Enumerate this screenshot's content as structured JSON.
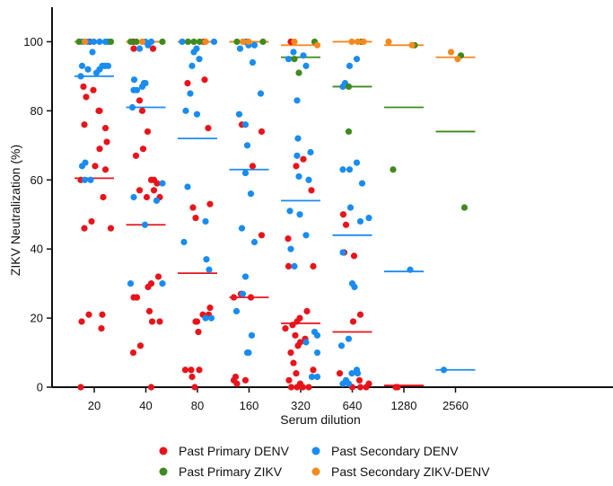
{
  "chart_data": {
    "type": "scatter",
    "xlabel": "Serum dilution",
    "ylabel": "ZIKV Neutralization (%)",
    "ylim": [
      0,
      110
    ],
    "yticks": [
      0,
      20,
      40,
      60,
      80,
      100
    ],
    "categories": [
      "20",
      "40",
      "80",
      "160",
      "320",
      "640",
      "1280",
      "2560"
    ],
    "grid": false,
    "legend_position": "bottom",
    "series": [
      {
        "name": "Past Primary DENV",
        "color": "#e8141b",
        "points": [
          [
            0,
            100
          ],
          [
            0,
            87
          ],
          [
            0,
            86
          ],
          [
            0,
            84
          ],
          [
            0,
            80
          ],
          [
            0,
            80
          ],
          [
            0,
            76
          ],
          [
            0,
            75
          ],
          [
            0,
            71
          ],
          [
            0,
            69
          ],
          [
            0,
            64
          ],
          [
            0,
            63
          ],
          [
            0,
            60
          ],
          [
            0,
            55
          ],
          [
            0,
            48
          ],
          [
            0,
            46
          ],
          [
            0,
            46
          ],
          [
            0,
            21
          ],
          [
            0,
            21
          ],
          [
            0,
            19
          ],
          [
            0,
            17
          ],
          [
            0,
            0
          ],
          [
            1,
            100
          ],
          [
            1,
            98
          ],
          [
            1,
            98
          ],
          [
            1,
            83
          ],
          [
            1,
            80
          ],
          [
            1,
            74
          ],
          [
            1,
            69
          ],
          [
            1,
            67
          ],
          [
            1,
            60
          ],
          [
            1,
            60
          ],
          [
            1,
            59
          ],
          [
            1,
            57
          ],
          [
            1,
            57
          ],
          [
            1,
            55
          ],
          [
            1,
            55
          ],
          [
            1,
            32
          ],
          [
            1,
            30
          ],
          [
            1,
            29
          ],
          [
            1,
            26
          ],
          [
            1,
            26
          ],
          [
            1,
            22
          ],
          [
            1,
            19
          ],
          [
            1,
            19
          ],
          [
            1,
            12
          ],
          [
            1,
            10
          ],
          [
            1,
            0
          ],
          [
            2,
            100
          ],
          [
            2,
            89
          ],
          [
            2,
            88
          ],
          [
            2,
            75
          ],
          [
            2,
            53
          ],
          [
            2,
            52
          ],
          [
            2,
            49
          ],
          [
            2,
            23
          ],
          [
            2,
            21
          ],
          [
            2,
            21
          ],
          [
            2,
            19
          ],
          [
            2,
            19
          ],
          [
            2,
            16
          ],
          [
            2,
            5
          ],
          [
            2,
            5
          ],
          [
            2,
            5
          ],
          [
            2,
            3
          ],
          [
            2,
            0
          ],
          [
            3,
            100
          ],
          [
            3,
            76
          ],
          [
            3,
            74
          ],
          [
            3,
            64
          ],
          [
            3,
            44
          ],
          [
            3,
            27
          ],
          [
            3,
            26
          ],
          [
            3,
            26
          ],
          [
            3,
            3
          ],
          [
            3,
            2
          ],
          [
            3,
            2
          ],
          [
            3,
            1
          ],
          [
            4,
            100
          ],
          [
            4,
            66
          ],
          [
            4,
            64
          ],
          [
            4,
            57
          ],
          [
            4,
            43
          ],
          [
            4,
            35
          ],
          [
            4,
            35
          ],
          [
            4,
            22
          ],
          [
            4,
            20
          ],
          [
            4,
            19
          ],
          [
            4,
            18
          ],
          [
            4,
            17
          ],
          [
            4,
            15
          ],
          [
            4,
            14
          ],
          [
            4,
            13
          ],
          [
            4,
            12
          ],
          [
            4,
            10
          ],
          [
            4,
            7
          ],
          [
            4,
            5
          ],
          [
            4,
            4
          ],
          [
            4,
            2
          ],
          [
            4,
            1
          ],
          [
            4,
            0
          ],
          [
            4,
            0
          ],
          [
            4,
            0
          ],
          [
            4,
            0
          ],
          [
            5,
            50
          ],
          [
            5,
            47
          ],
          [
            5,
            39
          ],
          [
            5,
            38
          ],
          [
            5,
            21
          ],
          [
            5,
            19
          ],
          [
            5,
            4
          ],
          [
            5,
            2
          ],
          [
            5,
            1
          ],
          [
            5,
            0
          ],
          [
            5,
            0
          ],
          [
            5,
            0
          ],
          [
            6,
            0
          ],
          [
            6,
            0
          ]
        ]
      },
      {
        "name": "Past Secondary DENV",
        "color": "#1a8cf0",
        "points": [
          [
            0,
            100
          ],
          [
            0,
            100
          ],
          [
            0,
            100
          ],
          [
            0,
            100
          ],
          [
            0,
            100
          ],
          [
            0,
            100
          ],
          [
            0,
            97
          ],
          [
            0,
            93
          ],
          [
            0,
            93
          ],
          [
            0,
            93
          ],
          [
            0,
            93
          ],
          [
            0,
            92
          ],
          [
            0,
            92
          ],
          [
            0,
            91
          ],
          [
            0,
            90
          ],
          [
            0,
            65
          ],
          [
            0,
            64
          ],
          [
            0,
            60
          ],
          [
            0,
            60
          ],
          [
            1,
            100
          ],
          [
            1,
            100
          ],
          [
            1,
            99
          ],
          [
            1,
            98
          ],
          [
            1,
            89
          ],
          [
            1,
            88
          ],
          [
            1,
            88
          ],
          [
            1,
            87
          ],
          [
            1,
            86
          ],
          [
            1,
            86
          ],
          [
            1,
            81
          ],
          [
            1,
            59
          ],
          [
            1,
            55
          ],
          [
            1,
            54
          ],
          [
            1,
            47
          ],
          [
            1,
            30
          ],
          [
            1,
            30
          ],
          [
            2,
            100
          ],
          [
            2,
            100
          ],
          [
            2,
            98
          ],
          [
            2,
            97
          ],
          [
            2,
            95
          ],
          [
            2,
            93
          ],
          [
            2,
            85
          ],
          [
            2,
            80
          ],
          [
            2,
            79
          ],
          [
            2,
            58
          ],
          [
            2,
            48
          ],
          [
            2,
            42
          ],
          [
            2,
            37
          ],
          [
            2,
            34
          ],
          [
            2,
            20
          ],
          [
            2,
            20
          ],
          [
            3,
            100
          ],
          [
            3,
            99
          ],
          [
            3,
            99
          ],
          [
            3,
            98
          ],
          [
            3,
            94
          ],
          [
            3,
            85
          ],
          [
            3,
            79
          ],
          [
            3,
            76
          ],
          [
            3,
            70
          ],
          [
            3,
            62
          ],
          [
            3,
            56
          ],
          [
            3,
            46
          ],
          [
            3,
            42
          ],
          [
            3,
            32
          ],
          [
            3,
            27
          ],
          [
            3,
            22
          ],
          [
            3,
            15
          ],
          [
            3,
            10
          ],
          [
            3,
            10
          ],
          [
            4,
            97
          ],
          [
            4,
            96
          ],
          [
            4,
            95
          ],
          [
            4,
            93
          ],
          [
            4,
            83
          ],
          [
            4,
            72
          ],
          [
            4,
            68
          ],
          [
            4,
            67
          ],
          [
            4,
            61
          ],
          [
            4,
            60
          ],
          [
            4,
            51
          ],
          [
            4,
            50
          ],
          [
            4,
            44
          ],
          [
            4,
            40
          ],
          [
            4,
            35
          ],
          [
            4,
            16
          ],
          [
            4,
            15
          ],
          [
            4,
            13
          ],
          [
            4,
            10
          ],
          [
            4,
            3
          ],
          [
            4,
            3
          ],
          [
            5,
            95
          ],
          [
            5,
            93
          ],
          [
            5,
            88
          ],
          [
            5,
            87
          ],
          [
            5,
            65
          ],
          [
            5,
            63
          ],
          [
            5,
            63
          ],
          [
            5,
            59
          ],
          [
            5,
            52
          ],
          [
            5,
            49
          ],
          [
            5,
            48
          ],
          [
            5,
            39
          ],
          [
            5,
            30
          ],
          [
            5,
            29
          ],
          [
            5,
            14
          ],
          [
            5,
            12
          ],
          [
            5,
            5
          ],
          [
            5,
            4
          ],
          [
            5,
            4
          ],
          [
            5,
            2
          ],
          [
            5,
            1
          ],
          [
            5,
            1
          ],
          [
            6,
            34
          ],
          [
            7,
            5
          ]
        ]
      },
      {
        "name": "Past Primary ZIKV",
        "color": "#3e8a1e",
        "points": [
          [
            0,
            100
          ],
          [
            0,
            100
          ],
          [
            1,
            100
          ],
          [
            1,
            100
          ],
          [
            1,
            100
          ],
          [
            2,
            100
          ],
          [
            2,
            100
          ],
          [
            2,
            100
          ],
          [
            3,
            100
          ],
          [
            3,
            100
          ],
          [
            4,
            100
          ],
          [
            4,
            91
          ],
          [
            4,
            95
          ],
          [
            5,
            100
          ],
          [
            5,
            87
          ],
          [
            5,
            74
          ],
          [
            6,
            99
          ],
          [
            6,
            63
          ],
          [
            7,
            96
          ],
          [
            7,
            52
          ]
        ]
      },
      {
        "name": "Past Secondary ZIKV-DENV",
        "color": "#f4891f",
        "points": [
          [
            0,
            100
          ],
          [
            1,
            100
          ],
          [
            2,
            100
          ],
          [
            3,
            100
          ],
          [
            3,
            100
          ],
          [
            4,
            99
          ],
          [
            4,
            100
          ],
          [
            5,
            100
          ],
          [
            5,
            100
          ],
          [
            5,
            100
          ],
          [
            6,
            99
          ],
          [
            6,
            100
          ],
          [
            7,
            97
          ],
          [
            7,
            95
          ]
        ]
      }
    ],
    "medians": [
      {
        "series": "Past Primary DENV",
        "values": [
          60.5,
          47,
          33,
          26,
          18.5,
          16,
          0.5,
          null
        ]
      },
      {
        "series": "Past Secondary DENV",
        "values": [
          90,
          81,
          72,
          63,
          54,
          44,
          33.5,
          5
        ]
      },
      {
        "series": "Past Primary ZIKV",
        "values": [
          100,
          100,
          100,
          100,
          95.5,
          87,
          81,
          74
        ]
      },
      {
        "series": "Past Secondary ZIKV-DENV",
        "values": [
          100,
          100,
          100,
          100,
          99,
          100,
          99,
          95.5
        ]
      }
    ]
  }
}
